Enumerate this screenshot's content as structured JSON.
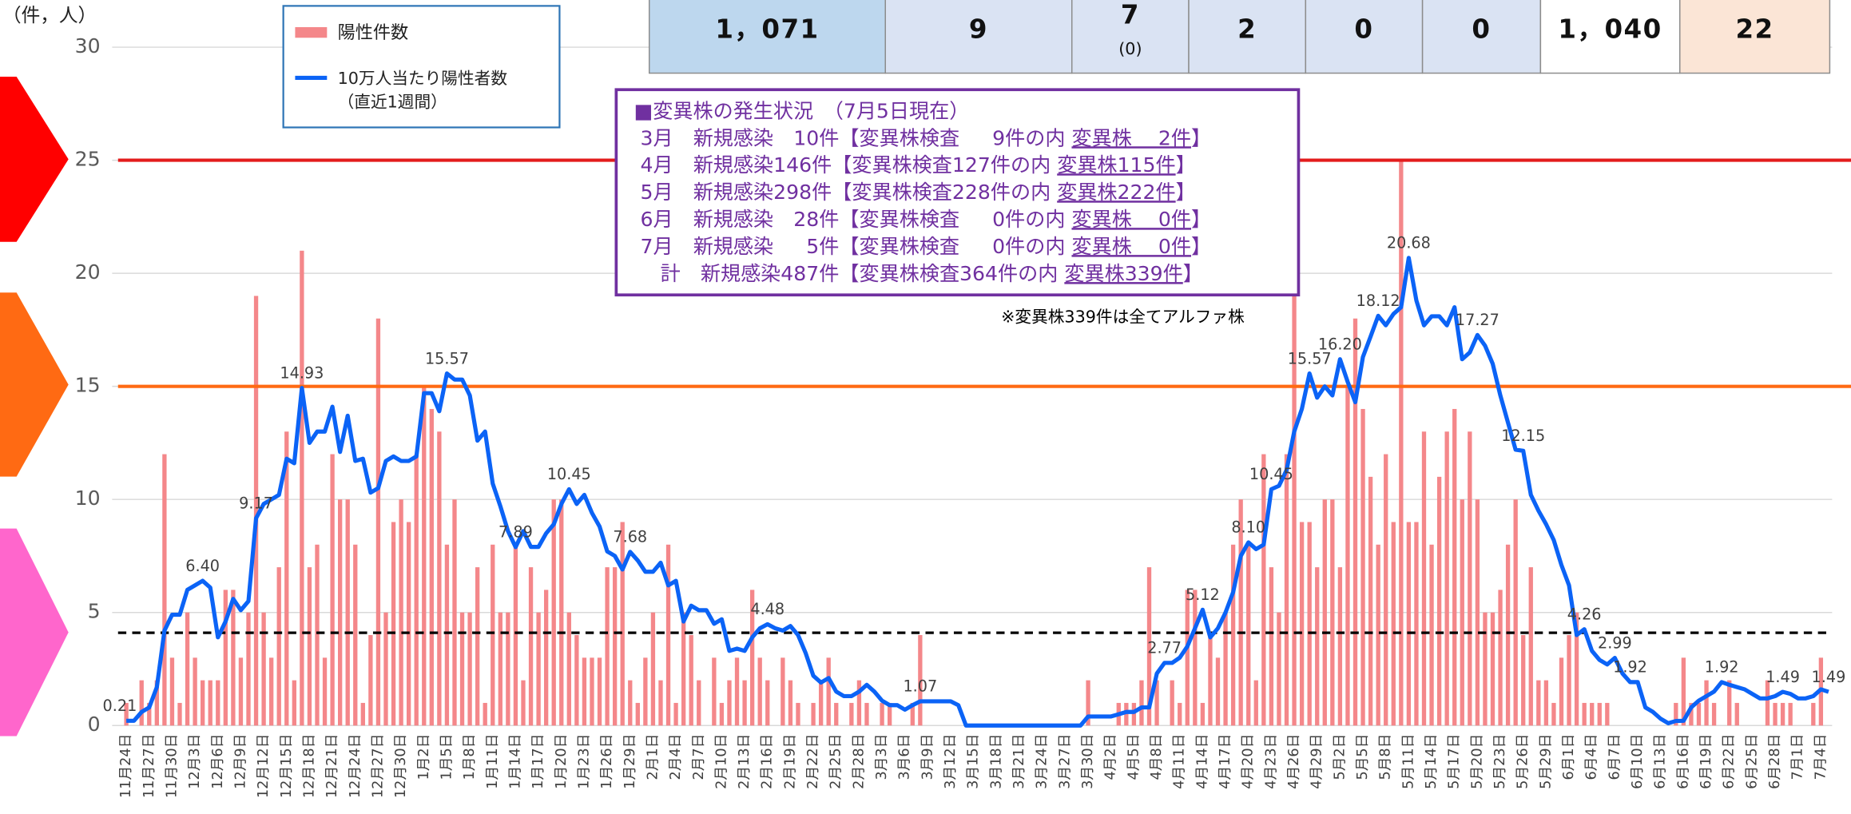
{
  "chart_data": {
    "type": "bar_line",
    "y_axis_label": "（件，人）",
    "ylim": [
      0,
      30
    ],
    "yticks": [
      0,
      5,
      10,
      15,
      20,
      25,
      30
    ],
    "grid": true,
    "reference_lines": [
      {
        "value": 25,
        "color": "#e31c1c",
        "dashed": false
      },
      {
        "value": 15,
        "color": "#ff6a13",
        "dashed": false
      },
      {
        "value": 4.1,
        "color": "#000000",
        "dashed": true
      }
    ],
    "legend_note": "（直近1週間）",
    "categories": [
      "11月24日",
      null,
      null,
      "11月27日",
      null,
      null,
      "11月30日",
      null,
      null,
      "12月3日",
      null,
      null,
      "12月6日",
      null,
      null,
      "12月9日",
      null,
      null,
      "12月12日",
      null,
      null,
      "12月15日",
      null,
      null,
      "12月18日",
      null,
      null,
      "12月21日",
      null,
      null,
      "12月24日",
      null,
      null,
      "12月27日",
      null,
      null,
      "12月30日",
      null,
      null,
      "1月2日",
      null,
      null,
      "1月5日",
      null,
      null,
      "1月8日",
      null,
      null,
      "1月11日",
      null,
      null,
      "1月14日",
      null,
      null,
      "1月17日",
      null,
      null,
      "1月20日",
      null,
      null,
      "1月23日",
      null,
      null,
      "1月26日",
      null,
      null,
      "1月29日",
      null,
      null,
      "2月1日",
      null,
      null,
      "2月4日",
      null,
      null,
      "2月7日",
      null,
      null,
      "2月10日",
      null,
      null,
      "2月13日",
      null,
      null,
      "2月16日",
      null,
      null,
      "2月19日",
      null,
      null,
      "2月22日",
      null,
      null,
      "2月25日",
      null,
      null,
      "2月28日",
      null,
      null,
      "3月3日",
      null,
      null,
      "3月6日",
      null,
      null,
      "3月9日",
      null,
      null,
      "3月12日",
      null,
      null,
      "3月15日",
      null,
      null,
      "3月18日",
      null,
      null,
      "3月21日",
      null,
      null,
      "3月24日",
      null,
      null,
      "3月27日",
      null,
      null,
      "3月30日",
      null,
      null,
      "4月2日",
      null,
      null,
      "4月5日",
      null,
      null,
      "4月8日",
      null,
      null,
      "4月11日",
      null,
      null,
      "4月14日",
      null,
      null,
      "4月17日",
      null,
      null,
      "4月20日",
      null,
      null,
      "4月23日",
      null,
      null,
      "4月26日",
      null,
      null,
      "4月29日",
      null,
      null,
      "5月2日",
      null,
      null,
      "5月5日",
      null,
      null,
      "5月8日",
      null,
      null,
      "5月11日",
      null,
      null,
      "5月14日",
      null,
      null,
      "5月17日",
      null,
      null,
      "5月20日",
      null,
      null,
      "5月23日",
      null,
      null,
      "5月26日",
      null,
      null,
      "5月29日",
      null,
      null,
      "6月1日",
      null,
      null,
      "6月4日",
      null,
      null,
      "6月7日",
      null,
      null,
      "6月10日",
      null,
      null,
      "6月13日",
      null,
      null,
      "6月16日",
      null,
      null,
      "6月19日",
      null,
      null,
      "6月22日",
      null,
      null,
      "6月25日",
      null,
      null,
      "6月28日",
      null,
      null,
      "7月1日",
      null,
      null,
      "7月4日",
      null
    ],
    "series": [
      {
        "name": "陽性件数",
        "type": "bar",
        "color": "#f4878a",
        "values": [
          1,
          0,
          2,
          1,
          2,
          12,
          3,
          1,
          5,
          3,
          2,
          2,
          2,
          6,
          6,
          3,
          5,
          19,
          5,
          3,
          7,
          13,
          2,
          21,
          7,
          8,
          3,
          12,
          10,
          10,
          8,
          1,
          4,
          18,
          5,
          9,
          10,
          9,
          12,
          15,
          14,
          13,
          8,
          10,
          5,
          5,
          7,
          1,
          8,
          5,
          5,
          8,
          2,
          7,
          5,
          6,
          10,
          10,
          5,
          4,
          3,
          3,
          3,
          7,
          7,
          9,
          2,
          1,
          3,
          5,
          2,
          8,
          1,
          5,
          4,
          2,
          0,
          3,
          1,
          2,
          3,
          2,
          6,
          3,
          2,
          0,
          3,
          2,
          1,
          0,
          1,
          2,
          3,
          1,
          0,
          1,
          2,
          1,
          0,
          1,
          1,
          0,
          0,
          1,
          4,
          0,
          0,
          0,
          0,
          0,
          0,
          0,
          0,
          0,
          0,
          0,
          0,
          0,
          0,
          0,
          0,
          0,
          0,
          0,
          0,
          0,
          2,
          0,
          0,
          0,
          1,
          1,
          1,
          2,
          7,
          2,
          0,
          2,
          1,
          6,
          6,
          1,
          4,
          3,
          5,
          8,
          10,
          8,
          2,
          12,
          7,
          5,
          12,
          19,
          9,
          9,
          7,
          10,
          10,
          7,
          15,
          18,
          14,
          11,
          8,
          12,
          9,
          25,
          9,
          9,
          13,
          8,
          11,
          13,
          14,
          10,
          13,
          10,
          5,
          5,
          6,
          8,
          10,
          4,
          7,
          2,
          2,
          1,
          3,
          4,
          5,
          1,
          1,
          1,
          1,
          0,
          0,
          0,
          0,
          0,
          0,
          0,
          0,
          1,
          3,
          1,
          1,
          2,
          1,
          0,
          2,
          1,
          0,
          0,
          0,
          2,
          1,
          1,
          1,
          0,
          0,
          1,
          3,
          0
        ]
      },
      {
        "name": "10万人当たり陽性者数",
        "type": "line",
        "color": "#0b63f6",
        "values": [
          0.21,
          0.21,
          0.6,
          0.8,
          1.7,
          4.2,
          4.9,
          4.9,
          6.0,
          6.2,
          6.4,
          6.1,
          3.9,
          4.6,
          5.6,
          5.1,
          5.5,
          9.17,
          9.8,
          10.0,
          10.2,
          11.8,
          11.6,
          14.93,
          12.5,
          13.0,
          13.0,
          14.1,
          12.1,
          13.7,
          11.7,
          11.8,
          10.3,
          10.5,
          11.7,
          11.9,
          11.7,
          11.7,
          11.9,
          14.7,
          14.7,
          13.9,
          15.57,
          15.3,
          15.3,
          14.6,
          12.6,
          13.0,
          10.7,
          9.7,
          8.6,
          7.89,
          8.6,
          7.9,
          7.9,
          8.5,
          8.9,
          9.8,
          10.45,
          9.8,
          10.2,
          9.4,
          8.8,
          7.7,
          7.5,
          6.9,
          7.68,
          7.3,
          6.8,
          6.8,
          7.2,
          6.2,
          6.4,
          4.6,
          5.3,
          5.1,
          5.1,
          4.5,
          4.7,
          3.3,
          3.4,
          3.3,
          3.9,
          4.3,
          4.48,
          4.3,
          4.2,
          4.4,
          4.0,
          3.2,
          2.2,
          1.9,
          2.1,
          1.5,
          1.3,
          1.3,
          1.5,
          1.8,
          1.5,
          1.1,
          0.9,
          0.9,
          0.7,
          0.9,
          1.07,
          1.07,
          1.07,
          1.07,
          1.07,
          0.9,
          0,
          0,
          0,
          0,
          0,
          0,
          0,
          0,
          0,
          0,
          0,
          0,
          0,
          0,
          0,
          0,
          0.4,
          0.4,
          0.4,
          0.4,
          0.5,
          0.6,
          0.6,
          0.8,
          0.8,
          2.3,
          2.77,
          2.77,
          3.0,
          3.5,
          4.3,
          5.12,
          3.9,
          4.3,
          5.0,
          5.9,
          7.5,
          8.1,
          7.8,
          8.0,
          10.45,
          10.6,
          11.3,
          13.0,
          14.0,
          15.57,
          14.5,
          15.0,
          14.6,
          16.2,
          15.2,
          14.3,
          16.3,
          17.2,
          18.12,
          17.7,
          18.2,
          18.5,
          20.68,
          18.8,
          17.7,
          18.1,
          18.1,
          17.7,
          18.5,
          16.2,
          16.5,
          17.27,
          16.8,
          16.0,
          14.6,
          13.4,
          12.2,
          12.15,
          10.2,
          9.5,
          8.9,
          8.2,
          7.1,
          6.2,
          4.0,
          4.26,
          3.3,
          2.9,
          2.7,
          2.99,
          2.3,
          1.92,
          1.92,
          0.8,
          0.6,
          0.3,
          0.1,
          0.2,
          0.21,
          0.8,
          1.1,
          1.3,
          1.5,
          1.92,
          1.8,
          1.7,
          1.6,
          1.4,
          1.2,
          1.2,
          1.3,
          1.49,
          1.4,
          1.2,
          1.2,
          1.3,
          1.6,
          1.49
        ],
        "value_labels": [
          "0.21",
          null,
          null,
          null,
          null,
          null,
          null,
          null,
          null,
          null,
          "6.40",
          null,
          null,
          null,
          null,
          null,
          null,
          "9.17",
          null,
          null,
          null,
          null,
          null,
          "14.93",
          null,
          null,
          null,
          null,
          null,
          null,
          null,
          null,
          null,
          null,
          null,
          null,
          null,
          null,
          null,
          null,
          null,
          null,
          "15.57",
          null,
          null,
          null,
          null,
          null,
          null,
          null,
          null,
          "7.89",
          null,
          null,
          null,
          null,
          null,
          null,
          "10.45",
          null,
          null,
          null,
          null,
          null,
          null,
          null,
          "7.68",
          null,
          null,
          null,
          null,
          null,
          null,
          null,
          null,
          null,
          null,
          null,
          null,
          null,
          null,
          null,
          null,
          null,
          "4.48",
          null,
          null,
          null,
          null,
          null,
          null,
          null,
          null,
          null,
          null,
          null,
          null,
          null,
          null,
          null,
          null,
          null,
          null,
          null,
          "1.07",
          null,
          null,
          null,
          null,
          null,
          null,
          null,
          null,
          null,
          null,
          null,
          null,
          null,
          null,
          null,
          null,
          null,
          null,
          null,
          null,
          null,
          null,
          null,
          null,
          null,
          null,
          null,
          null,
          null,
          null,
          null,
          "2.77",
          null,
          null,
          null,
          null,
          "5.12",
          null,
          null,
          null,
          null,
          null,
          "8.10",
          null,
          null,
          "10.45",
          null,
          null,
          null,
          null,
          "15.57",
          null,
          null,
          null,
          "16.20",
          null,
          null,
          null,
          null,
          "18.12",
          null,
          null,
          null,
          "20.68",
          null,
          null,
          null,
          null,
          null,
          null,
          null,
          null,
          "17.27",
          null,
          null,
          null,
          null,
          null,
          "12.15",
          null,
          null,
          null,
          null,
          null,
          null,
          null,
          "4.26",
          null,
          null,
          null,
          "2.99",
          null,
          "1.92",
          null,
          null,
          null,
          null,
          null,
          null,
          null,
          null,
          null,
          null,
          null,
          "1.92",
          null,
          null,
          null,
          null,
          null,
          null,
          null,
          "1.49",
          null,
          null,
          null,
          null,
          null,
          "1.49"
        ]
      }
    ]
  },
  "table": {
    "cells": [
      {
        "text": "1，071"
      },
      {
        "text": "9"
      },
      {
        "text": "7",
        "note": "(0)"
      },
      {
        "text": "2"
      },
      {
        "text": "0"
      },
      {
        "text": "0"
      },
      {
        "text": "1，040"
      },
      {
        "text": "22"
      }
    ]
  },
  "variant_box": {
    "title": "■変異株の発生状況　（7月5日現在）",
    "rows": [
      {
        "pre": " 3月　新規感染　10件【変異株検査　  9件の内 ",
        "under": "変異株　 2件",
        "post": "】"
      },
      {
        "pre": " 4月　新規感染146件【変異株検査127件の内 ",
        "under": "変異株115件",
        "post": "】"
      },
      {
        "pre": " 5月　新規感染298件【変異株検査228件の内 ",
        "under": "変異株222件",
        "post": "】"
      },
      {
        "pre": " 6月　新規感染　28件【変異株検査　  0件の内 ",
        "under": "変異株　 0件",
        "post": "】"
      },
      {
        "pre": " 7月　新規感染　  5件【変異株検査　  0件の内 ",
        "under": "変異株　 0件",
        "post": "】"
      },
      {
        "pre": " 　計　新規感染487件【変異株検査364件の内 ",
        "under": "変異株339件",
        "post": "】"
      }
    ],
    "note": "※変異株339件は全てアルファ株"
  }
}
